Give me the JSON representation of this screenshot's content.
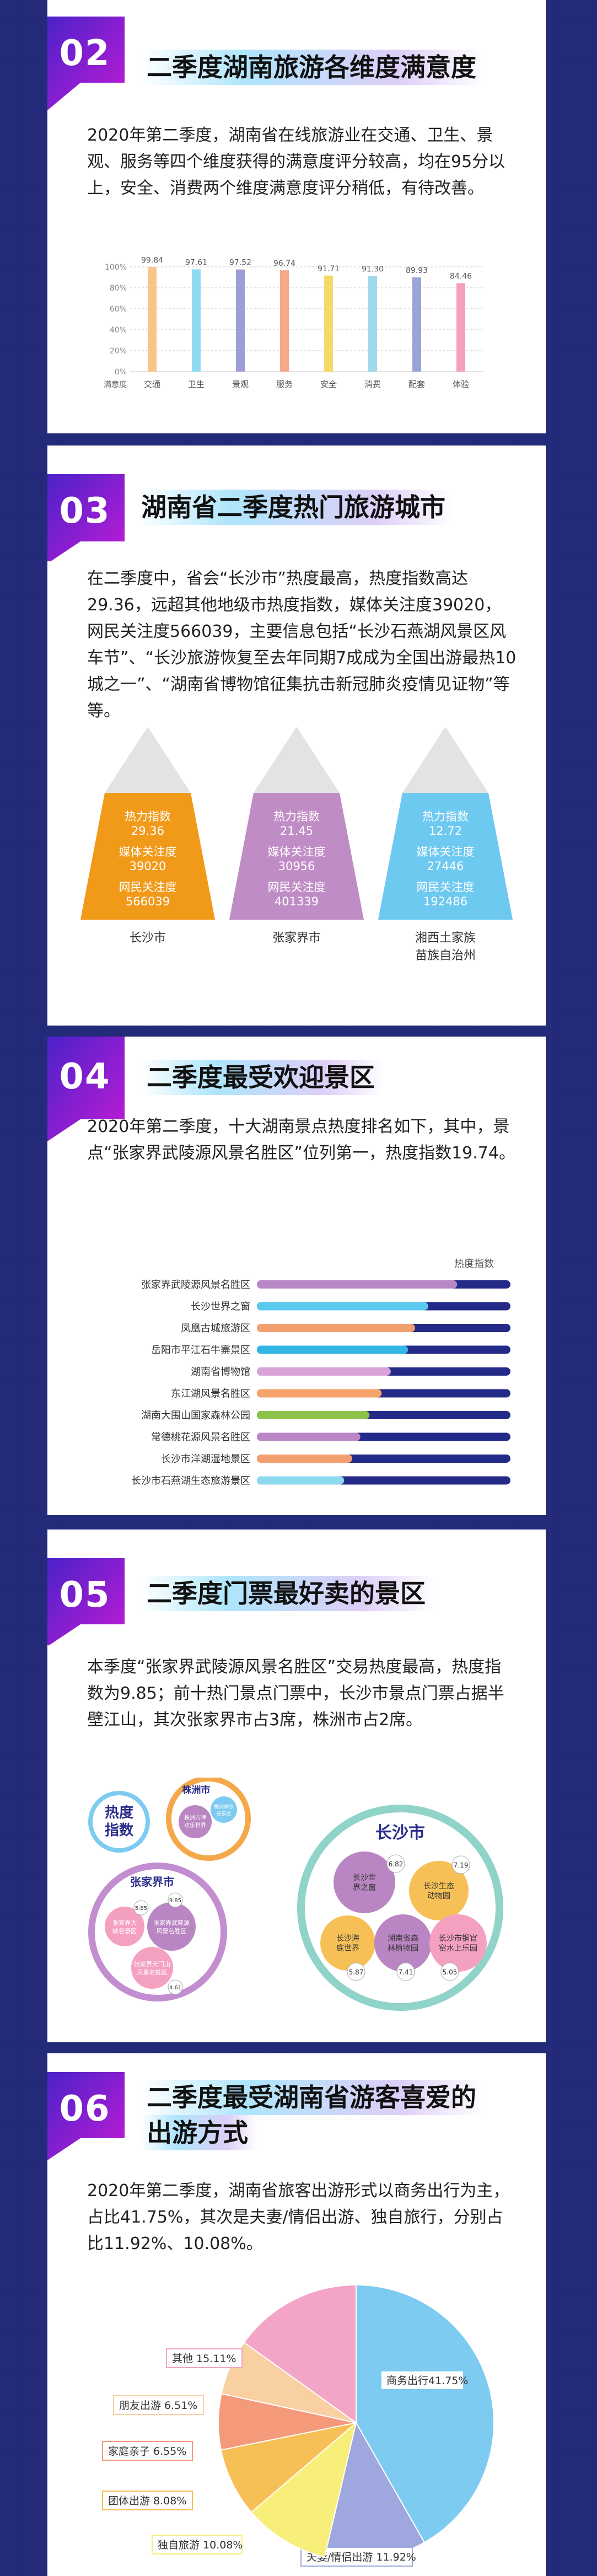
{
  "colors": {
    "page_bg": "#232a7a",
    "badge_start": "#4a22c9",
    "badge_end": "#c21bd6",
    "orange": "#f19a1a",
    "purple": "#b985c2",
    "blue": "#6ec9f0",
    "navy": "#2b2d8c"
  },
  "sections": [
    {
      "num": "02",
      "title": "二季度湖南旅游各维度满意度",
      "text": "2020年第二季度，湖南省在线旅游业在交通、卫生、景观、服务等四个维度获得的满意度评分较高，均在95分以上，安全、消费两个维度满意度评分稍低，有待改善。"
    },
    {
      "num": "03",
      "title": "湖南省二季度热门旅游城市",
      "text": "在二季度中，省会“长沙市”热度最高，热度指数高达29.36，远超其他地级市热度指数，媒体关注度39020，网民关注度566039，主要信息包括“长沙石燕湖风景区风车节”、“长沙旅游恢复至去年同期7成成为全国出游最热10城之一”、“湖南省博物馆征集抗击新冠肺炎疫情见证物”等等。"
    },
    {
      "num": "04",
      "title": "二季度最受欢迎景区",
      "text": "2020年第二季度，十大湖南景点热度排名如下，其中，景点“张家界武陵源风景名胜区”位列第一，热度指数19.74。"
    },
    {
      "num": "05",
      "title": "二季度门票最好卖的景区",
      "text": "本季度“张家界武陵源风景名胜区”交易热度最高，热度指数为9.85；前十热门景点门票中，长沙市景点门票占据半壁江山，其次张家界市占3席，株洲市占2席。"
    },
    {
      "num": "06",
      "title_line1": "二季度最受湖南省游客喜爱的",
      "title_line2": "出游方式",
      "text": "2020年第二季度，湖南省旅客出游形式以商务出行为主，占比41.75%，其次是夫妻/情侣出游、独自旅行，分别占比11.92%、10.08%。"
    }
  ],
  "chart_data": [
    {
      "type": "bar",
      "categories": [
        "交通",
        "卫生",
        "景观",
        "服务",
        "安全",
        "消费",
        "配套",
        "体验"
      ],
      "values": [
        99.84,
        97.61,
        97.52,
        96.74,
        91.71,
        91.3,
        89.93,
        84.46
      ],
      "value_labels": [
        "99.84",
        "97.61",
        "97.52",
        "96.74",
        "91.71",
        "91.30",
        "89.93",
        "84.46"
      ],
      "colors": [
        "#f7c58a",
        "#8fdcf2",
        "#9b9fd6",
        "#f5a98a",
        "#f6d96a",
        "#9ed9ec",
        "#9aa4d6",
        "#f4a0c0"
      ],
      "yticks": [
        "100%",
        "80%",
        "60%",
        "40%",
        "20%",
        "0%"
      ],
      "ylim": [
        0,
        100
      ],
      "xlabel": "满意度",
      "grid": true
    },
    {
      "type": "table",
      "cities": [
        {
          "name": "长沙市",
          "heat_label": "热力指数",
          "heat": "29.36",
          "media_label": "媒体关注度",
          "media": "39020",
          "net_label": "网民关注度",
          "net": "566039",
          "color": "#f19a1a"
        },
        {
          "name": "张家界市",
          "heat_label": "热力指数",
          "heat": "21.45",
          "media_label": "媒体关注度",
          "media": "30956",
          "net_label": "网民关注度",
          "net": "401339",
          "color": "#c08cc6"
        },
        {
          "name_line1": "湘西土家族",
          "name_line2": "苗族自治州",
          "heat_label": "热力指数",
          "heat": "12.72",
          "media_label": "媒体关注度",
          "media": "27446",
          "net_label": "网民关注度",
          "net": "192486",
          "color": "#6ec9f0"
        }
      ]
    },
    {
      "type": "bar",
      "legend": "热度指数",
      "categories": [
        "张家界武陵源风景名胜区",
        "长沙世界之窗",
        "凤凰古城旅游区",
        "岳阳市平江石牛寨景区",
        "湖南省博物馆",
        "东江湖风景名胜区",
        "湖南大围山国家森林公园",
        "常德桃花源风景名胜区",
        "长沙市洋湖湿地景区",
        "长沙市石燕湖生态旅游景区"
      ],
      "values": [
        19.74,
        16.9,
        15.6,
        14.9,
        13.2,
        12.3,
        11.1,
        10.2,
        9.4,
        8.6
      ],
      "xlim": [
        0,
        40
      ],
      "colors": [
        "#b987c6",
        "#5bc8ee",
        "#f3a071",
        "#31b6e6",
        "#d9a3d9",
        "#f5a26b",
        "#8bc34a",
        "#b987c6",
        "#f3a071",
        "#8ed8f0"
      ]
    },
    {
      "type": "table",
      "legend": "热度指数",
      "groups": [
        {
          "name": "株洲市",
          "items": [
            {
              "label": "株洲方特欢乐世界",
              "value": ""
            },
            {
              "label": "株洲神农谷景区",
              "value": ""
            }
          ]
        },
        {
          "name": "张家界市",
          "items": [
            {
              "label": "张家界大峡谷景区",
              "value": "5.85"
            },
            {
              "label": "张家界武陵源风景名胜区",
              "value": "9.85"
            },
            {
              "label": "张家界天门山风景名胜区",
              "value": "4.61"
            }
          ]
        },
        {
          "name": "长沙市",
          "items": [
            {
              "label": "长沙世界之窗",
              "value": "6.82"
            },
            {
              "label": "长沙生态动物园",
              "value": "7.19"
            },
            {
              "label": "长沙海底世界",
              "value": "5.87"
            },
            {
              "label": "湖南省森林植物园",
              "value": "7.41"
            },
            {
              "label": "长沙市铜官窑水上乐园",
              "value": "5.05"
            }
          ]
        }
      ]
    },
    {
      "type": "pie",
      "slices": [
        {
          "label": "商务出行",
          "value": 41.75,
          "text": "商务出行41.75%",
          "color": "#7ecbf1"
        },
        {
          "label": "夫妻/情侣出游",
          "value": 11.92,
          "text": "夫妻/情侣出游 11.92%",
          "color": "#9ea7de"
        },
        {
          "label": "独自旅游",
          "value": 10.08,
          "text": "独自旅游 10.08%",
          "color": "#f8ee7a"
        },
        {
          "label": "团体出游",
          "value": 8.08,
          "text": "团体出游  8.08%",
          "color": "#f7c057"
        },
        {
          "label": "家庭亲子",
          "value": 6.55,
          "text": "家庭亲子  6.55%",
          "color": "#f4997a"
        },
        {
          "label": "朋友出游",
          "value": 6.51,
          "text": "朋友出游  6.51%",
          "color": "#f8d0a2"
        },
        {
          "label": "其他",
          "value": 15.11,
          "text": "其他 15.11%",
          "color": "#f3a5c8"
        }
      ]
    }
  ]
}
